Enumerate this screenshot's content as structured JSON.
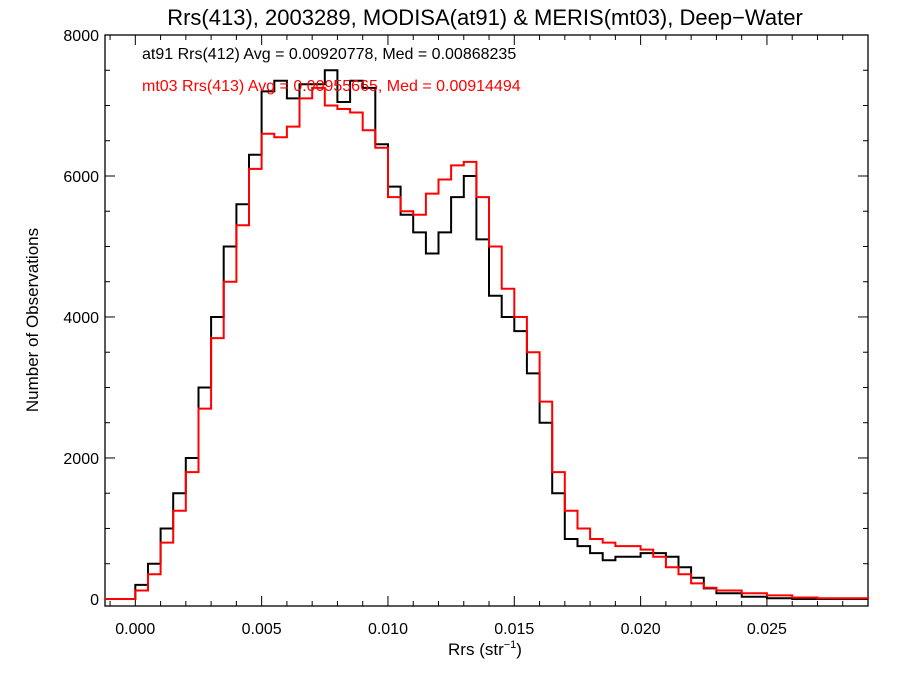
{
  "chart_data": {
    "type": "line",
    "title": "Rrs(413), 2003289, MODISA(at91) & MERIS(mt03), Deep−Water",
    "xlabel_main": "Rrs (str",
    "xlabel_sup": "−1",
    "xlabel_close": ")",
    "ylabel": "Number of Observations",
    "xlim": [
      -0.0012,
      0.029
    ],
    "ylim": [
      -100,
      8000
    ],
    "x_ticks": [
      0.0,
      0.005,
      0.01,
      0.015,
      0.02,
      0.025
    ],
    "x_tick_labels": [
      "0.000",
      "0.005",
      "0.010",
      "0.015",
      "0.020",
      "0.025"
    ],
    "y_ticks": [
      0,
      2000,
      4000,
      6000,
      8000
    ],
    "y_tick_labels": [
      "0",
      "2000",
      "4000",
      "6000",
      "8000"
    ],
    "legend_placement": "top-left",
    "legend": [
      {
        "text": "at91 Rrs(412) Avg = 0.00920778, Med = 0.00868235",
        "color": "#000000"
      },
      {
        "text": "mt03 Rrs(413) Avg = 0.00955665, Med = 0.00914494",
        "color": "#ff0000"
      }
    ],
    "series": [
      {
        "color": "#000000",
        "x": [
          -0.0012,
          0.0,
          0.0005,
          0.001,
          0.0015,
          0.002,
          0.0025,
          0.003,
          0.0035,
          0.004,
          0.0045,
          0.005,
          0.0055,
          0.006,
          0.0065,
          0.007,
          0.0075,
          0.008,
          0.0085,
          0.009,
          0.0095,
          0.01,
          0.0105,
          0.011,
          0.0115,
          0.012,
          0.0125,
          0.013,
          0.0135,
          0.014,
          0.0145,
          0.015,
          0.0155,
          0.016,
          0.0165,
          0.017,
          0.0175,
          0.018,
          0.0185,
          0.019,
          0.0195,
          0.02,
          0.0205,
          0.021,
          0.0215,
          0.022,
          0.0225,
          0.023,
          0.024,
          0.025,
          0.026,
          0.027,
          0.029
        ],
        "y": [
          0,
          200,
          500,
          1000,
          1500,
          2000,
          3000,
          4000,
          5000,
          5600,
          6300,
          7200,
          7350,
          7100,
          7300,
          7300,
          7500,
          7050,
          7350,
          7250,
          6450,
          5850,
          5450,
          5200,
          4900,
          5200,
          5700,
          6000,
          5100,
          4300,
          4000,
          3800,
          3200,
          2500,
          1500,
          850,
          750,
          650,
          550,
          600,
          600,
          650,
          650,
          600,
          450,
          300,
          150,
          80,
          30,
          10,
          0,
          0,
          0
        ]
      },
      {
        "color": "#ff0000",
        "x": [
          -0.0012,
          0.0,
          0.0005,
          0.001,
          0.0015,
          0.002,
          0.0025,
          0.003,
          0.0035,
          0.004,
          0.0045,
          0.005,
          0.0055,
          0.006,
          0.0065,
          0.007,
          0.0075,
          0.008,
          0.0085,
          0.009,
          0.0095,
          0.01,
          0.0105,
          0.011,
          0.0115,
          0.012,
          0.0125,
          0.013,
          0.0135,
          0.014,
          0.0145,
          0.015,
          0.0155,
          0.016,
          0.0165,
          0.017,
          0.0175,
          0.018,
          0.0185,
          0.019,
          0.0195,
          0.02,
          0.0205,
          0.021,
          0.0215,
          0.022,
          0.0225,
          0.023,
          0.024,
          0.025,
          0.026,
          0.027,
          0.029
        ],
        "y": [
          0,
          120,
          350,
          800,
          1250,
          1800,
          2700,
          3700,
          4500,
          5300,
          6100,
          6600,
          6550,
          6700,
          7100,
          7250,
          7000,
          6950,
          6900,
          6650,
          6400,
          5700,
          5500,
          5450,
          5750,
          5950,
          6150,
          6200,
          5700,
          5000,
          4400,
          4000,
          3500,
          2800,
          1800,
          1250,
          1000,
          850,
          800,
          750,
          750,
          700,
          600,
          450,
          350,
          220,
          160,
          120,
          80,
          50,
          20,
          10,
          0
        ]
      }
    ]
  }
}
